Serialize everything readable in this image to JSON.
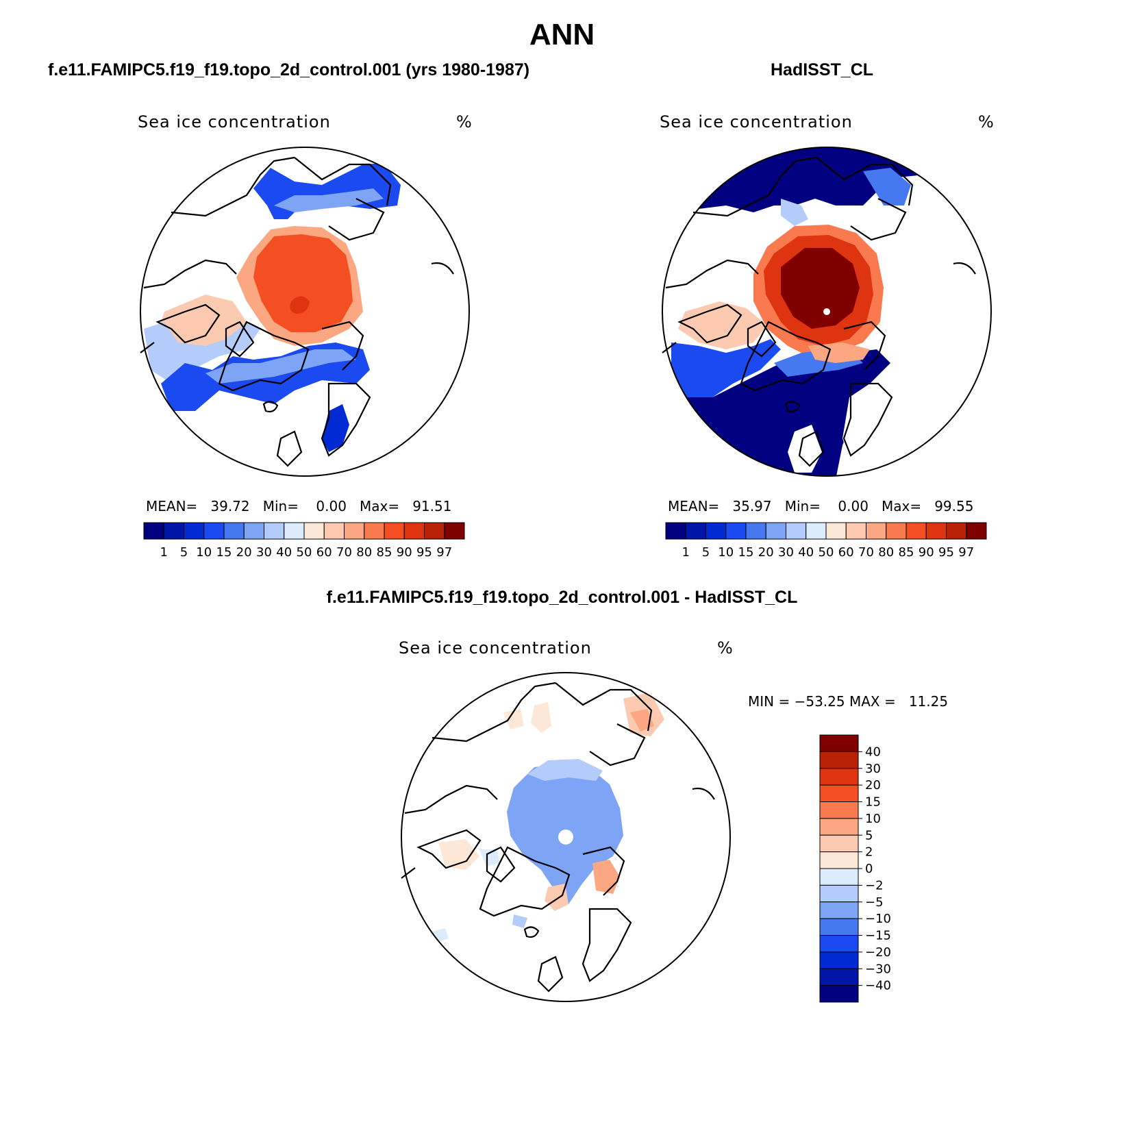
{
  "title": "ANN",
  "panels": [
    {
      "id": "model",
      "case_title": "f.e11.FAMIPC5.f19_f19.topo_2d_control.001 (yrs 1980-1987)",
      "variable": "Sea ice concentration",
      "units": "%",
      "stats": {
        "mean_label": "MEAN=",
        "mean": "39.72",
        "min_label": "Min=",
        "min": "0.00",
        "max_label": "Max=",
        "max": "91.51"
      }
    },
    {
      "id": "obs",
      "case_title": "HadISST_CL",
      "variable": "Sea ice concentration",
      "units": "%",
      "stats": {
        "mean_label": "MEAN=",
        "mean": "35.97",
        "min_label": "Min=",
        "min": "0.00",
        "max_label": "Max=",
        "max": "99.55"
      }
    },
    {
      "id": "diff",
      "case_title": "f.e11.FAMIPC5.f19_f19.topo_2d_control.001 - HadISST_CL",
      "variable": "Sea ice concentration",
      "units": "%",
      "stats": {
        "min_label": "MIN =",
        "min": "−53.25",
        "max_label": "MAX =",
        "max": "11.25"
      }
    }
  ],
  "colorbar_abs": {
    "colors": [
      "#000080",
      "#0016a8",
      "#002ad2",
      "#1a4af0",
      "#4678f0",
      "#7ea4f5",
      "#b4ccfa",
      "#dcecfc",
      "#fde8d8",
      "#fccab0",
      "#fba882",
      "#f97a4f",
      "#f44f22",
      "#de3410",
      "#b82106",
      "#800000"
    ],
    "ticks": [
      "1",
      "5",
      "10",
      "15",
      "20",
      "30",
      "40",
      "50",
      "60",
      "70",
      "80",
      "85",
      "90",
      "95",
      "97"
    ]
  },
  "colorbar_diff": {
    "colors": [
      "#800000",
      "#b82106",
      "#de3410",
      "#f44f22",
      "#f97a4f",
      "#fba882",
      "#fccab0",
      "#fde8d8",
      "#dcecfc",
      "#b4ccfa",
      "#7ea4f5",
      "#4678f0",
      "#1a4af0",
      "#002ad2",
      "#0016a8",
      "#000080"
    ],
    "ticks": [
      "40",
      "30",
      "20",
      "15",
      "10",
      "5",
      "2",
      "0",
      "−2",
      "−5",
      "−10",
      "−15",
      "−20",
      "−30",
      "−40"
    ]
  }
}
